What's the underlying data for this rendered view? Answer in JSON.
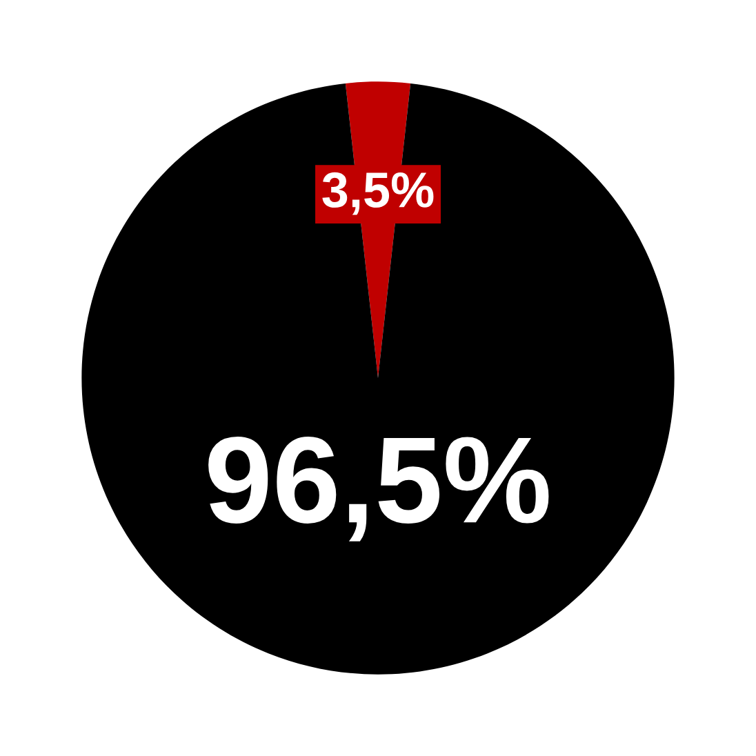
{
  "chart_data": {
    "type": "pie",
    "categories": [
      null,
      null
    ],
    "values": [
      3.5,
      96.5
    ],
    "colors": [
      "#c00000",
      "#000000"
    ],
    "value_labels": [
      "3,5%",
      "96,5%"
    ]
  }
}
